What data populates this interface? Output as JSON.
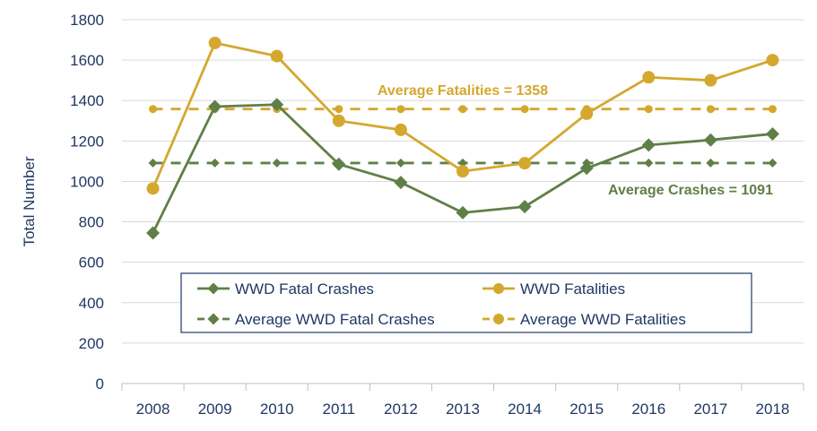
{
  "chart_data": {
    "type": "line",
    "title": "",
    "xlabel": "",
    "ylabel": "Total Number",
    "categories": [
      "2008",
      "2009",
      "2010",
      "2011",
      "2012",
      "2013",
      "2014",
      "2015",
      "2016",
      "2017",
      "2018"
    ],
    "ylim": [
      0,
      1800
    ],
    "yticks": [
      0,
      200,
      400,
      600,
      800,
      1000,
      1200,
      1400,
      1600,
      1800
    ],
    "grid": true,
    "legend_position": "bottom-center",
    "series": [
      {
        "name": "WWD Fatal Crashes",
        "color": "#5f7f47",
        "marker": "diamond",
        "dashed": false,
        "values": [
          745,
          1370,
          1380,
          1085,
          995,
          845,
          875,
          1065,
          1180,
          1205,
          1235
        ]
      },
      {
        "name": "WWD Fatalities",
        "color": "#d4a82f",
        "marker": "circle",
        "dashed": false,
        "values": [
          965,
          1685,
          1620,
          1300,
          1255,
          1050,
          1090,
          1335,
          1515,
          1500,
          1600
        ]
      },
      {
        "name": "Average WWD Fatal Crashes",
        "color": "#5f7f47",
        "marker": "diamond",
        "dashed": true,
        "values": [
          1091,
          1091,
          1091,
          1091,
          1091,
          1091,
          1091,
          1091,
          1091,
          1091,
          1091
        ]
      },
      {
        "name": "Average WWD Fatalities",
        "color": "#d4a82f",
        "marker": "circle",
        "dashed": true,
        "values": [
          1358,
          1358,
          1358,
          1358,
          1358,
          1358,
          1358,
          1358,
          1358,
          1358,
          1358
        ]
      }
    ],
    "annotations": [
      {
        "text": "Average Fatalities = 1358",
        "color": "#d4a82f"
      },
      {
        "text": "Average Crashes = 1091",
        "color": "#5f7f47"
      }
    ]
  }
}
